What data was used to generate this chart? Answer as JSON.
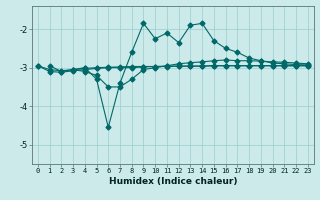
{
  "xlabel": "Humidex (Indice chaleur)",
  "bg_color": "#cceaea",
  "line_color": "#006868",
  "grid_color": "#99cccc",
  "xlim": [
    -0.5,
    23.5
  ],
  "ylim": [
    -5.5,
    -1.4
  ],
  "yticks": [
    -5,
    -4,
    -3,
    -2
  ],
  "xticks": [
    0,
    1,
    2,
    3,
    4,
    5,
    6,
    7,
    8,
    9,
    10,
    11,
    12,
    13,
    14,
    15,
    16,
    17,
    18,
    19,
    20,
    21,
    22,
    23
  ],
  "series": [
    [
      null,
      -2.95,
      -3.1,
      -3.05,
      -3.0,
      -3.3,
      -4.55,
      -3.4,
      -2.6,
      -1.85,
      -2.25,
      -2.1,
      -2.35,
      -1.9,
      -1.85,
      -2.3,
      -2.5,
      -2.6,
      -2.75,
      -2.82,
      -2.88,
      -2.9,
      -2.92,
      -2.93
    ],
    [
      null,
      null,
      null,
      -3.05,
      -3.1,
      -3.2,
      -3.5,
      -3.5,
      -3.3,
      -3.05,
      -3.0,
      -2.95,
      -2.9,
      -2.87,
      -2.85,
      -2.82,
      -2.8,
      -2.82,
      -2.82,
      -2.83,
      -2.85,
      -2.86,
      -2.88,
      -2.9
    ],
    [
      -2.95,
      -3.1,
      -3.12,
      -3.08,
      -3.05,
      -3.02,
      -3.0,
      -3.0,
      -3.0,
      -2.98,
      -2.97,
      -2.97,
      -2.96,
      -2.96,
      -2.96,
      -2.95,
      -2.95,
      -2.95,
      -2.95,
      -2.95,
      -2.95,
      -2.95,
      -2.95,
      -2.95
    ],
    [
      -2.95,
      -3.05,
      -3.08,
      -3.05,
      -3.02,
      -3.0,
      -2.99,
      -2.98,
      -2.97,
      -2.97,
      -2.97,
      -2.96,
      -2.96,
      -2.96,
      -2.96,
      -2.95,
      -2.95,
      -2.95,
      -2.95,
      -2.95,
      -2.95,
      -2.95,
      -2.95,
      -2.95
    ]
  ],
  "marker": "D",
  "markersize": 2.5,
  "linewidth": 0.8,
  "tick_fontsize": 5.0,
  "xlabel_fontsize": 6.5
}
